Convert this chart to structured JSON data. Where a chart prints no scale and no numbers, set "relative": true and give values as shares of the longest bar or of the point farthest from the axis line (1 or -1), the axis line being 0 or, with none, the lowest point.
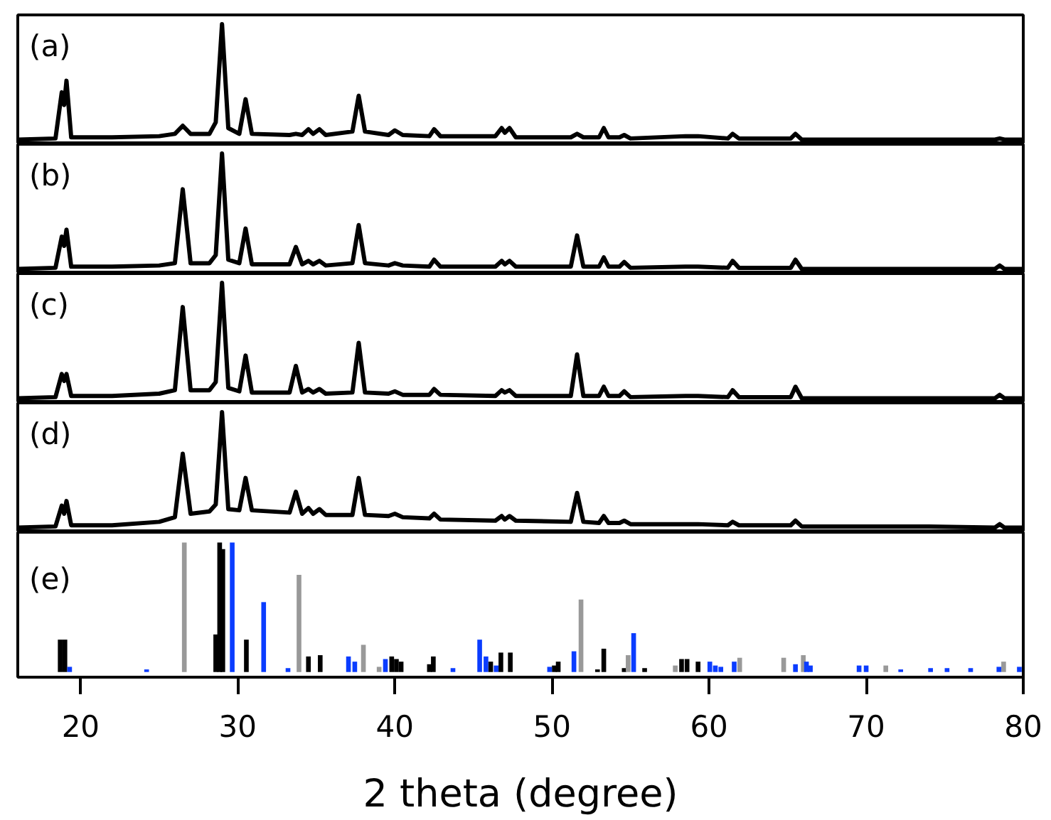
{
  "chart_data": [
    {
      "type": "line",
      "relative": true,
      "xlim": [
        16,
        80
      ],
      "tick_labels": false,
      "grid": false,
      "annotations": [
        "(a)"
      ],
      "series": [
        {
          "color": "#000000",
          "x": [
            16,
            18.4,
            18.8,
            18.95,
            19.1,
            19.4,
            22,
            25,
            26.0,
            26.5,
            27.0,
            28.2,
            28.6,
            29.0,
            29.4,
            30.1,
            30.5,
            30.9,
            33.3,
            33.7,
            34.1,
            34.5,
            34.8,
            35.2,
            35.6,
            37.3,
            37.7,
            38.1,
            39.6,
            40.0,
            40.5,
            42.2,
            42.5,
            42.9,
            46.4,
            46.8,
            47.0,
            47.3,
            47.7,
            51.2,
            51.6,
            52.0,
            53.0,
            53.3,
            53.6,
            54.3,
            54.6,
            55.0,
            58.5,
            59.3,
            61.2,
            61.5,
            61.9,
            65.2,
            65.5,
            65.9,
            74,
            78.2,
            78.5,
            78.8,
            80
          ],
          "values": [
            0.0,
            0.01,
            0.41,
            0.3,
            0.51,
            0.02,
            0.02,
            0.03,
            0.05,
            0.12,
            0.05,
            0.05,
            0.15,
            1.0,
            0.1,
            0.05,
            0.35,
            0.05,
            0.04,
            0.05,
            0.04,
            0.09,
            0.05,
            0.09,
            0.04,
            0.07,
            0.38,
            0.07,
            0.04,
            0.08,
            0.04,
            0.03,
            0.09,
            0.03,
            0.03,
            0.1,
            0.06,
            0.1,
            0.02,
            0.02,
            0.05,
            0.02,
            0.02,
            0.1,
            0.02,
            0.02,
            0.04,
            0.01,
            0.03,
            0.03,
            0.01,
            0.05,
            0.01,
            0.01,
            0.05,
            0.0,
            0.0,
            0.0,
            0.01,
            0.0,
            0.0
          ]
        }
      ]
    },
    {
      "type": "line",
      "relative": true,
      "xlim": [
        16,
        80
      ],
      "tick_labels": false,
      "grid": false,
      "annotations": [
        "(b)"
      ],
      "series": [
        {
          "color": "#000000",
          "x": [
            16,
            18.4,
            18.8,
            18.95,
            19.1,
            19.4,
            22,
            25,
            26.0,
            26.5,
            27.0,
            28.2,
            28.6,
            29.0,
            29.4,
            30.1,
            30.5,
            30.9,
            33.3,
            33.7,
            34.1,
            34.5,
            34.8,
            35.2,
            35.6,
            37.3,
            37.7,
            38.1,
            39.6,
            40.0,
            40.5,
            42.2,
            42.5,
            42.9,
            46.4,
            46.8,
            47.0,
            47.3,
            47.7,
            51.2,
            51.6,
            52.0,
            53.0,
            53.3,
            53.6,
            54.3,
            54.6,
            55.0,
            58.5,
            59.3,
            61.2,
            61.5,
            61.9,
            65.2,
            65.5,
            65.9,
            74,
            78.2,
            78.5,
            78.8,
            80
          ],
          "values": [
            0.0,
            0.01,
            0.28,
            0.2,
            0.34,
            0.02,
            0.02,
            0.03,
            0.05,
            0.69,
            0.05,
            0.05,
            0.12,
            1.0,
            0.08,
            0.05,
            0.35,
            0.04,
            0.04,
            0.19,
            0.04,
            0.07,
            0.04,
            0.07,
            0.03,
            0.05,
            0.38,
            0.05,
            0.03,
            0.05,
            0.03,
            0.02,
            0.08,
            0.02,
            0.02,
            0.07,
            0.04,
            0.07,
            0.02,
            0.02,
            0.29,
            0.02,
            0.02,
            0.1,
            0.02,
            0.02,
            0.06,
            0.01,
            0.02,
            0.02,
            0.01,
            0.07,
            0.01,
            0.01,
            0.08,
            0.0,
            0.0,
            0.0,
            0.03,
            0.0,
            0.0
          ]
        }
      ]
    },
    {
      "type": "line",
      "relative": true,
      "xlim": [
        16,
        80
      ],
      "tick_labels": false,
      "grid": false,
      "annotations": [
        "(c)"
      ],
      "series": [
        {
          "color": "#000000",
          "x": [
            16,
            18.4,
            18.8,
            18.95,
            19.1,
            19.4,
            22,
            25,
            26.0,
            26.5,
            27.0,
            28.2,
            28.6,
            29.0,
            29.4,
            30.1,
            30.5,
            30.9,
            33.3,
            33.7,
            34.1,
            34.5,
            34.8,
            35.2,
            35.6,
            37.3,
            37.7,
            38.1,
            39.6,
            40.0,
            40.5,
            42.2,
            42.5,
            42.9,
            46.4,
            46.8,
            47.0,
            47.3,
            47.7,
            51.2,
            51.6,
            52.0,
            53.0,
            53.3,
            53.6,
            54.3,
            54.6,
            55.0,
            58.5,
            59.3,
            61.2,
            61.5,
            61.9,
            65.2,
            65.5,
            65.9,
            74,
            78.2,
            78.5,
            78.8,
            80
          ],
          "values": [
            0.0,
            0.01,
            0.21,
            0.15,
            0.21,
            0.02,
            0.02,
            0.04,
            0.07,
            0.79,
            0.07,
            0.07,
            0.14,
            1.0,
            0.09,
            0.06,
            0.37,
            0.05,
            0.05,
            0.28,
            0.05,
            0.08,
            0.05,
            0.08,
            0.04,
            0.05,
            0.48,
            0.05,
            0.04,
            0.06,
            0.03,
            0.03,
            0.08,
            0.03,
            0.02,
            0.07,
            0.05,
            0.07,
            0.02,
            0.02,
            0.38,
            0.02,
            0.02,
            0.1,
            0.02,
            0.02,
            0.06,
            0.01,
            0.02,
            0.02,
            0.01,
            0.07,
            0.01,
            0.01,
            0.1,
            0.0,
            0.0,
            0.0,
            0.03,
            0.0,
            0.0
          ]
        }
      ]
    },
    {
      "type": "line",
      "relative": true,
      "xlim": [
        16,
        80
      ],
      "tick_labels": false,
      "grid": false,
      "annotations": [
        "(d)"
      ],
      "series": [
        {
          "color": "#000000",
          "x": [
            16,
            18.4,
            18.8,
            18.95,
            19.1,
            19.4,
            22,
            25,
            26.0,
            26.5,
            27.0,
            28.2,
            28.6,
            29.0,
            29.4,
            30.1,
            30.5,
            30.9,
            33.3,
            33.7,
            34.1,
            34.5,
            34.8,
            35.2,
            35.6,
            37.3,
            37.7,
            38.1,
            39.6,
            40.0,
            40.5,
            42.2,
            42.5,
            42.9,
            46.4,
            46.8,
            47.0,
            47.3,
            47.7,
            51.2,
            51.6,
            52.0,
            53.0,
            53.3,
            53.6,
            54.3,
            54.6,
            55.0,
            58.5,
            59.3,
            61.2,
            61.5,
            61.9,
            65.2,
            65.5,
            65.9,
            74,
            78.2,
            78.5,
            78.8,
            80
          ],
          "values": [
            0.0,
            0.01,
            0.19,
            0.12,
            0.23,
            0.02,
            0.02,
            0.05,
            0.09,
            0.64,
            0.12,
            0.14,
            0.2,
            1.0,
            0.16,
            0.15,
            0.43,
            0.15,
            0.13,
            0.31,
            0.12,
            0.17,
            0.12,
            0.16,
            0.11,
            0.11,
            0.43,
            0.11,
            0.1,
            0.12,
            0.09,
            0.08,
            0.12,
            0.07,
            0.06,
            0.1,
            0.07,
            0.1,
            0.06,
            0.05,
            0.3,
            0.05,
            0.04,
            0.1,
            0.04,
            0.04,
            0.06,
            0.03,
            0.03,
            0.03,
            0.02,
            0.05,
            0.02,
            0.02,
            0.06,
            0.01,
            0.01,
            0.0,
            0.03,
            0.0,
            0.0
          ]
        }
      ]
    },
    {
      "type": "bar",
      "relative": true,
      "xlim": [
        16,
        80
      ],
      "xticks": [
        20,
        30,
        40,
        50,
        60,
        70,
        80
      ],
      "xlabel": "2 theta (degree)",
      "tick_labels": "x",
      "grid": false,
      "annotations": [
        "(e)"
      ],
      "series": [
        {
          "color": "#000000",
          "x": [
            18.7,
            19.0,
            28.6,
            28.85,
            29.05,
            30.55,
            34.5,
            35.25,
            39.8,
            40.1,
            40.4,
            42.2,
            42.45,
            46.1,
            46.75,
            47.35,
            50.15,
            50.4,
            52.9,
            53.3,
            54.6,
            55.9,
            58.25,
            58.6,
            59.3
          ],
          "values": [
            0.25,
            0.25,
            0.29,
            1.0,
            0.95,
            0.25,
            0.12,
            0.13,
            0.12,
            0.1,
            0.08,
            0.06,
            0.12,
            0.08,
            0.15,
            0.15,
            0.05,
            0.08,
            0.02,
            0.18,
            0.03,
            0.03,
            0.1,
            0.1,
            0.08
          ]
        },
        {
          "color": "#999999",
          "x": [
            26.6,
            33.9,
            38.0,
            39.0,
            51.85,
            54.85,
            57.85,
            61.95,
            64.75,
            66.0,
            71.25,
            78.75
          ],
          "values": [
            1.0,
            0.75,
            0.21,
            0.04,
            0.56,
            0.13,
            0.05,
            0.11,
            0.11,
            0.13,
            0.05,
            0.08
          ]
        },
        {
          "color": "#0a3cff",
          "x": [
            19.3,
            24.2,
            29.65,
            31.65,
            33.2,
            37.05,
            37.45,
            39.4,
            43.7,
            45.4,
            45.8,
            46.45,
            49.85,
            51.4,
            55.2,
            60.05,
            60.4,
            60.75,
            61.6,
            65.5,
            66.2,
            66.45,
            69.55,
            70.0,
            72.2,
            74.1,
            75.15,
            76.65,
            78.45,
            79.75
          ],
          "values": [
            0.04,
            0.02,
            1.0,
            0.54,
            0.03,
            0.12,
            0.08,
            0.1,
            0.03,
            0.25,
            0.12,
            0.05,
            0.04,
            0.16,
            0.3,
            0.08,
            0.05,
            0.04,
            0.08,
            0.06,
            0.08,
            0.05,
            0.05,
            0.05,
            0.02,
            0.03,
            0.03,
            0.03,
            0.04,
            0.04
          ]
        }
      ]
    }
  ]
}
